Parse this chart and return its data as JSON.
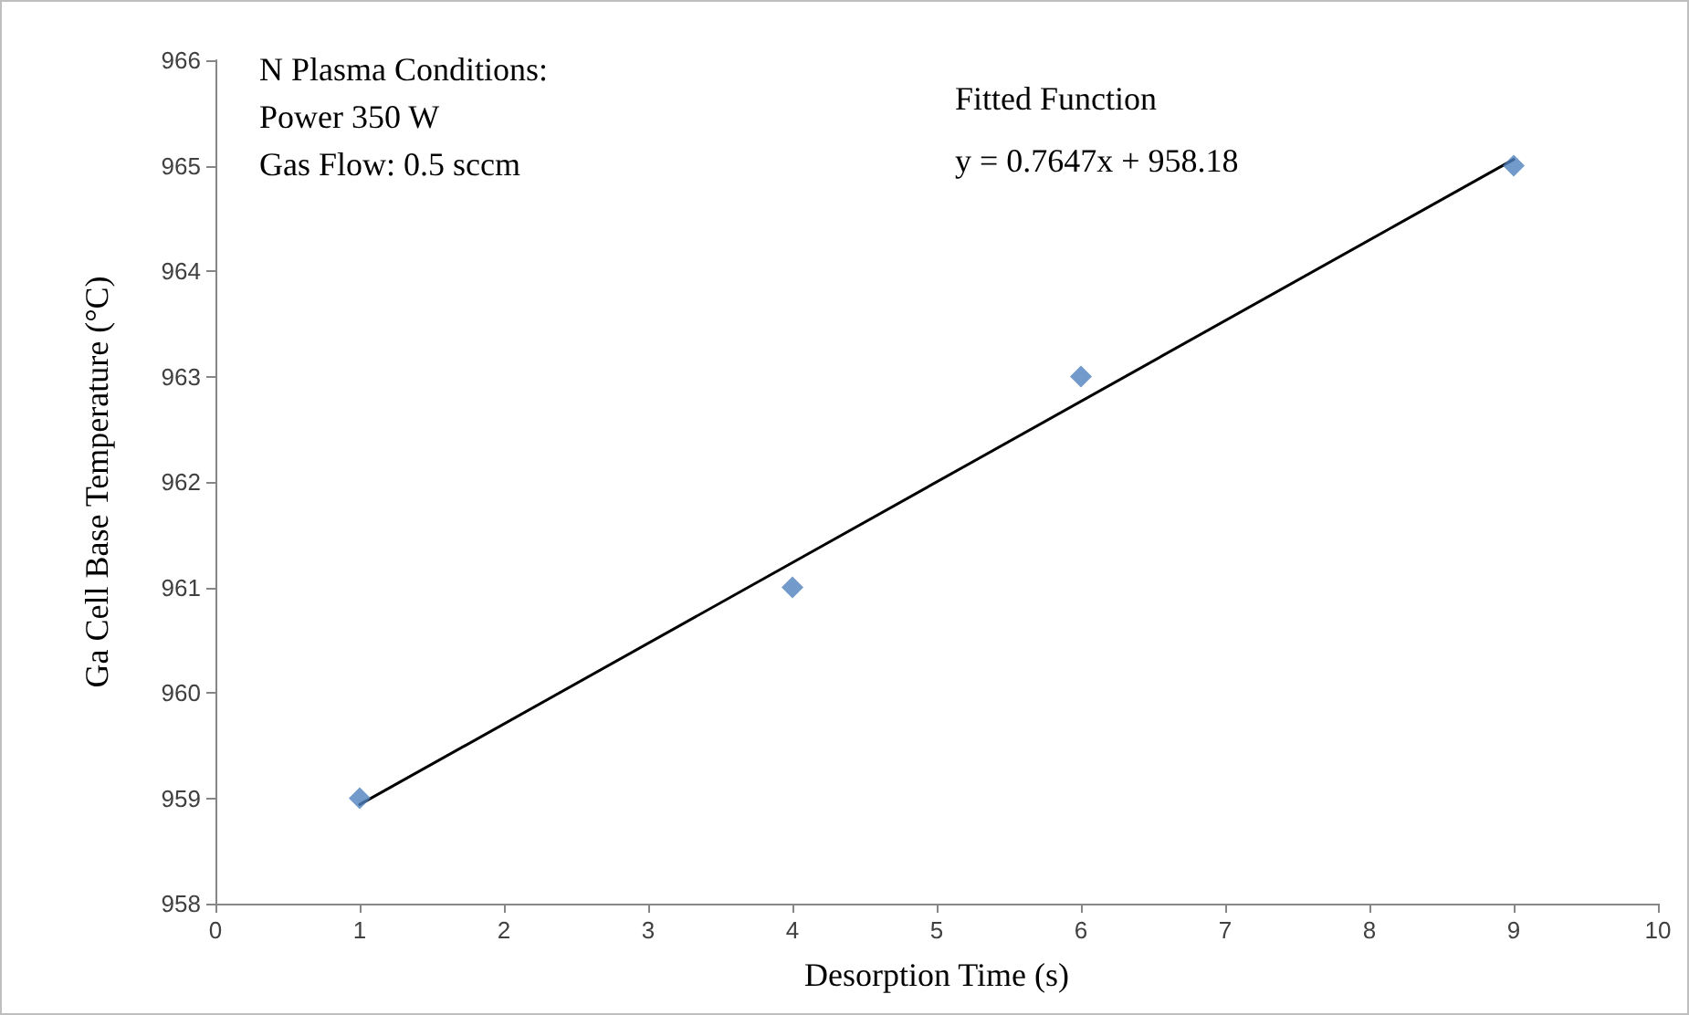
{
  "chart_data": {
    "type": "scatter",
    "xlabel": "Desorption Time (s)",
    "ylabel": "Ga Cell Base Temperature (°C)",
    "annotations": [
      "N Plasma Conditions:",
      "Power 350 W",
      "Gas Flow: 0.5 sccm",
      "Fitted Function",
      "y = 0.7647x + 958.18"
    ],
    "series": [
      {
        "type": "line",
        "color": "#000000",
        "x": [
          1,
          9
        ],
        "values": [
          958.94,
          965.06
        ],
        "marker": "none",
        "line_style": "solid"
      },
      {
        "color": "#4f81bd",
        "x": [
          1,
          4,
          6,
          9
        ],
        "values": [
          959,
          961,
          963,
          965
        ],
        "marker": "diamond"
      }
    ],
    "xlim": [
      0,
      10
    ],
    "xticks": [
      0,
      1,
      2,
      3,
      4,
      5,
      6,
      7,
      8,
      9,
      10
    ],
    "ylim": [
      958,
      966
    ],
    "yticks": [
      958,
      959,
      960,
      961,
      962,
      963,
      964,
      965,
      966
    ],
    "grid": false
  }
}
